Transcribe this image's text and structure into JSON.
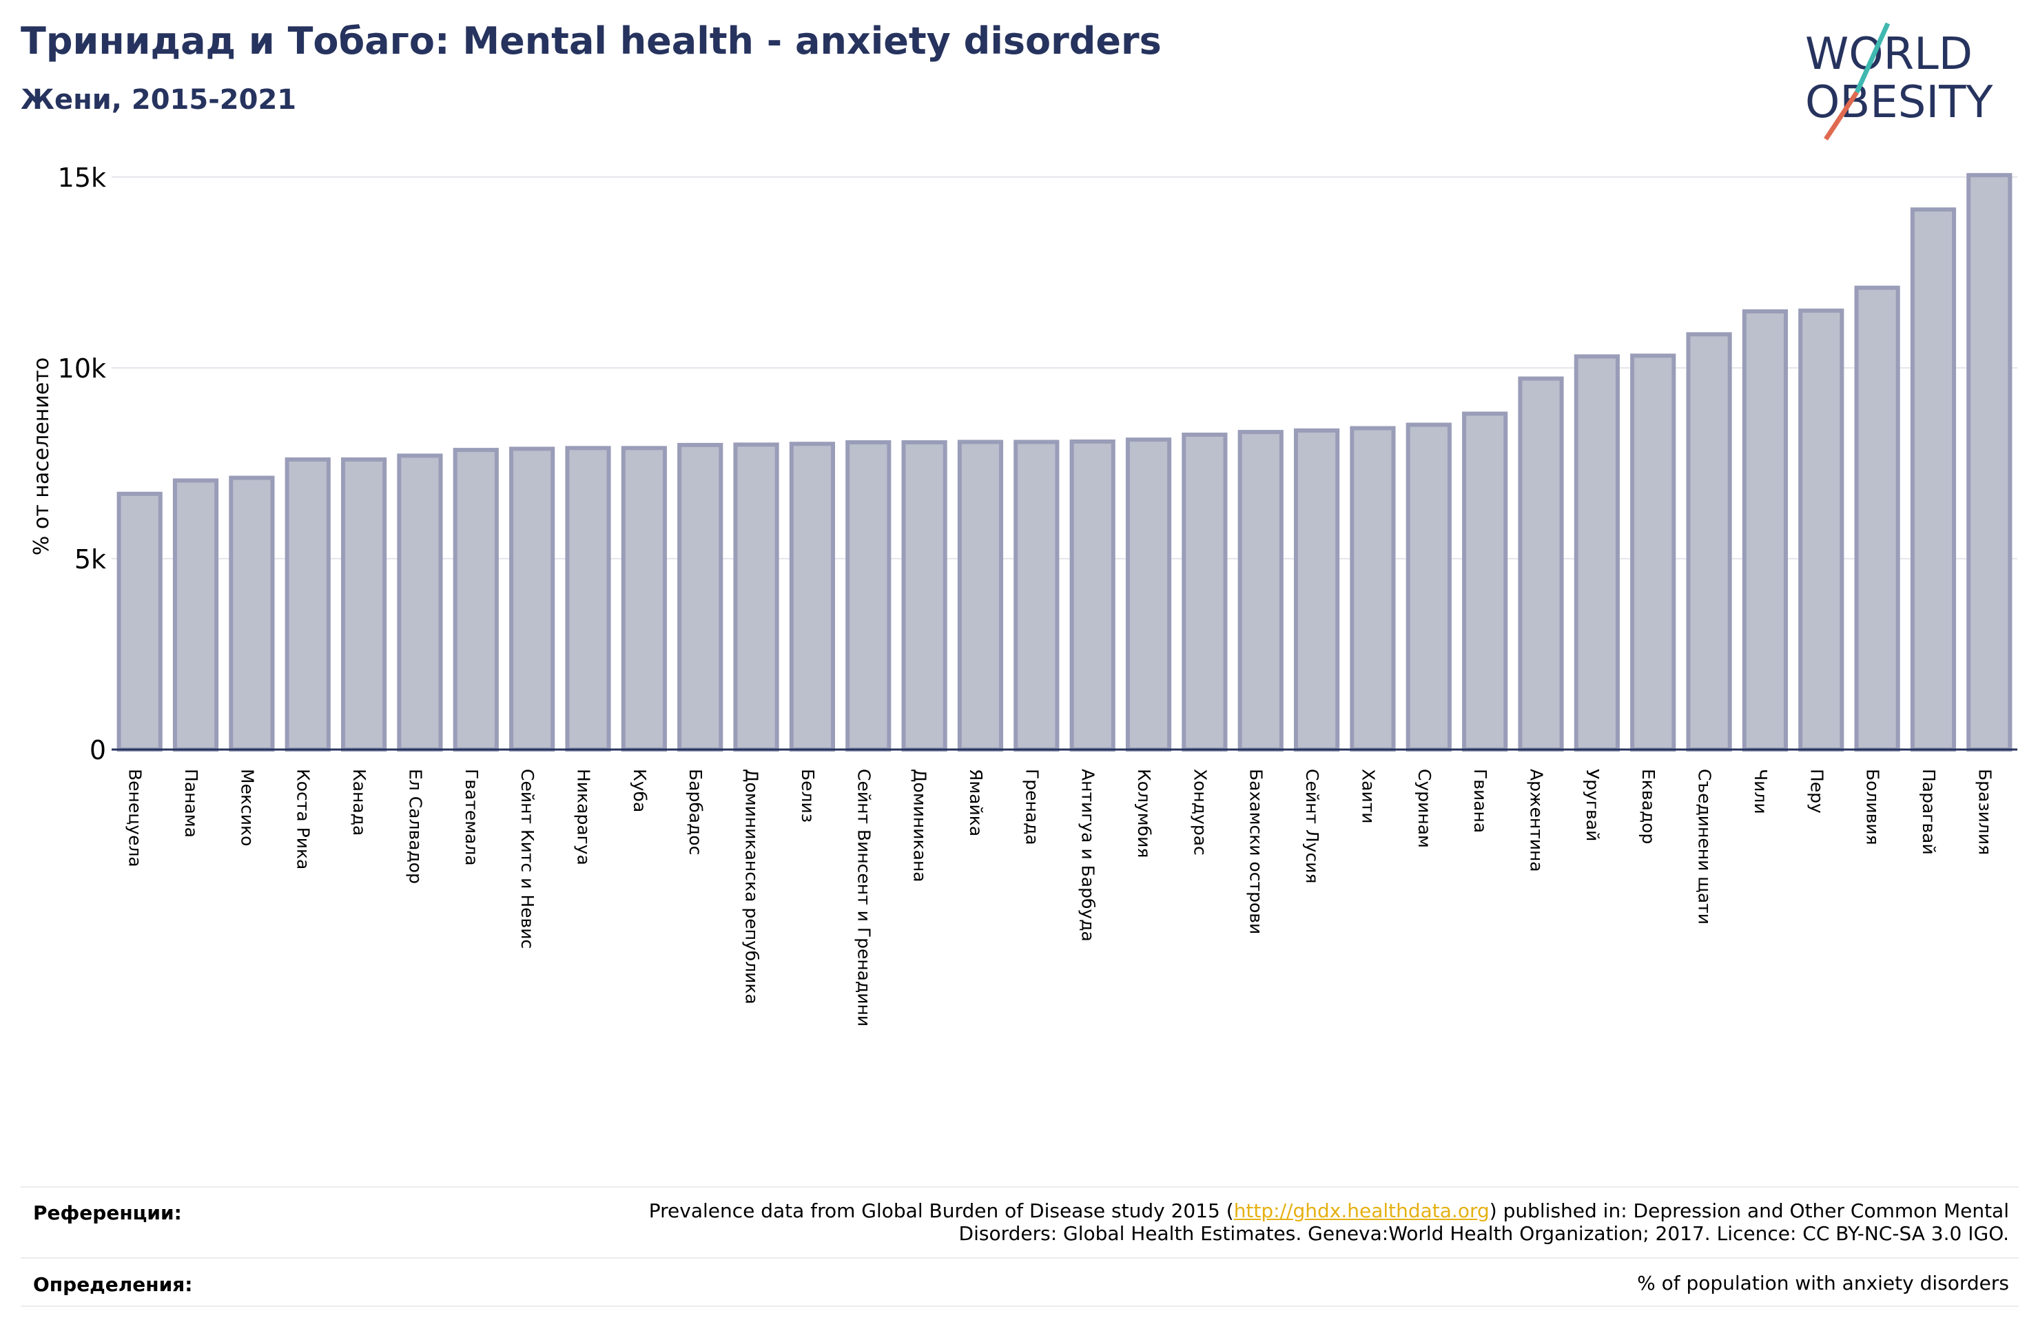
{
  "header": {
    "title": "Тринидад и Тобаго: Mental health - anxiety disorders",
    "subtitle": "Жени, 2015-2021"
  },
  "logo": {
    "line1": "WORLD",
    "line2": "OBESITY"
  },
  "footer": {
    "references_label": "Референции:",
    "references_text_before": "Prevalence data from Global Burden of Disease study 2015 (",
    "references_link": "http://ghdx.healthdata.org",
    "references_text_after": ") published in: Depression and Other Common Mental",
    "references_text_line2": "Disorders: Global Health Estimates. Geneva:World Health Organization; 2017. Licence: CC BY-NC-SA 3.0 IGO.",
    "definitions_label": "Определения:",
    "definitions_text": "% of population with anxiety disorders"
  },
  "colors": {
    "title": "#26335e",
    "bar_fill": "#bcbfcc",
    "bar_stroke": "#9a9db8",
    "link": "#e5b012",
    "logo_teal": "#3fb8b0",
    "logo_red": "#e06a50"
  },
  "chart_data": {
    "type": "bar",
    "ylabel": "% от населението",
    "ylim": [
      0,
      15000
    ],
    "yticks": [
      0,
      5000,
      10000,
      15000
    ],
    "ytick_labels": [
      "0",
      "5k",
      "10k",
      "15k"
    ],
    "grid": true,
    "categories": [
      "Венецуела",
      "Панама",
      "Мексико",
      "Коста Рика",
      "Канада",
      "Ел Салвадор",
      "Гватемала",
      "Сейнт Китс и Невис",
      "Никарагуа",
      "Куба",
      "Барбадос",
      "Доминиканска република",
      "Белиз",
      "Сейнт Винсент и Гренадини",
      "Доминикана",
      "Ямайка",
      "Гренада",
      "Антигуа и Барбуда",
      "Колумбия",
      "Хондурас",
      "Бахамски острови",
      "Сейнт Лусия",
      "Хаити",
      "Суринам",
      "Гвиана",
      "Аржентина",
      "Уругвай",
      "Еквадор",
      "Съединени щати",
      "Чили",
      "Перу",
      "Боливия",
      "Парагвай",
      "Бразилия"
    ],
    "values": [
      6700,
      7050,
      7120,
      7600,
      7600,
      7700,
      7850,
      7880,
      7900,
      7900,
      7980,
      7990,
      8010,
      8050,
      8050,
      8060,
      8060,
      8070,
      8120,
      8250,
      8320,
      8360,
      8420,
      8510,
      8800,
      9720,
      10300,
      10320,
      10880,
      11480,
      11500,
      12100,
      14150,
      15050
    ]
  }
}
